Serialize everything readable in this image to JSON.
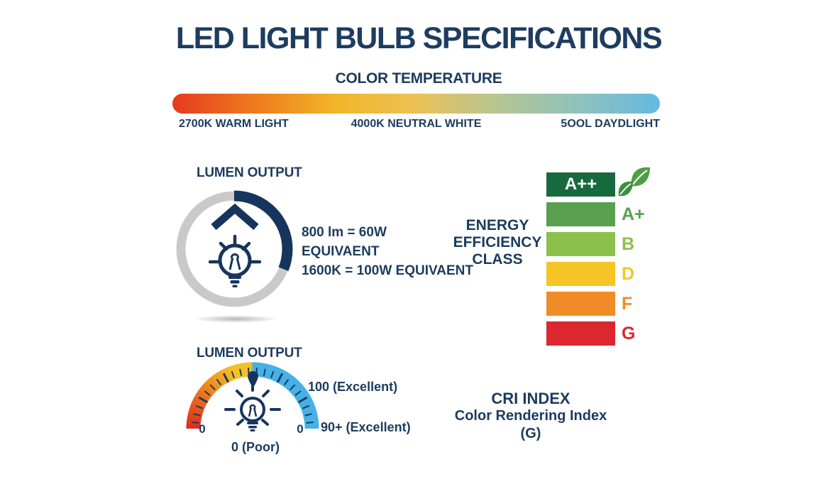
{
  "page": {
    "title": "LED LIGHT BULB SPECIFICATIONS"
  },
  "color_temperature": {
    "heading": "COLOR TEMPERATURE",
    "scale_labels": [
      "2700K WARM LIGHT",
      "4000K NEUTRAL WHITE",
      "5OOL DAYDLIGHT"
    ],
    "gradient": [
      "#e63a1d",
      "#ee7a1e",
      "#f2b528",
      "#ecc156",
      "#b5c593",
      "#8fc2bd",
      "#64b9e2"
    ]
  },
  "lumen_output": {
    "heading": "LUMEN OUTPUT",
    "lines": [
      "800 lm = 60W",
      "EQUIVAENT",
      "1600K = 100W EQUIVAENT"
    ],
    "gauge": {
      "arc_color": "#16355c",
      "ring_color": "#c9c9c9",
      "fill_degrees": 112
    }
  },
  "energy_efficiency": {
    "heading_lines": [
      "ENERGY",
      "EFFICIENCY",
      "CLASS"
    ],
    "classes": [
      {
        "label": "A++",
        "color": "#176a3d",
        "label_inside": true,
        "label_text_color": "#ffffff"
      },
      {
        "label": "A+",
        "color": "#58a04f"
      },
      {
        "label": "B",
        "color": "#8cc04d"
      },
      {
        "label": "D",
        "color": "#f6c426"
      },
      {
        "label": "F",
        "color": "#f08c28"
      },
      {
        "label": "G",
        "color": "#da2730"
      }
    ]
  },
  "cri_gauge": {
    "heading": "LUMEN OUTPUT",
    "left_end_label": "0",
    "right_end_label": "0",
    "bottom_label": "0 (Poor)",
    "top_right_label": "100 (Excellent)",
    "bottom_right_label": "90+ (Excellent)",
    "arc_colors": {
      "red": "#dc2a1f",
      "orange": "#ee7c1e",
      "yellow": "#f4c028",
      "blue": "#46b0e7"
    },
    "needle_color": "#16355c"
  },
  "cri_index": {
    "lines": [
      "CRI INDEX",
      "Color Rendering Index",
      "(G)"
    ]
  },
  "theme": {
    "text_navy": "#1d3c60",
    "background": "#ffffff"
  }
}
